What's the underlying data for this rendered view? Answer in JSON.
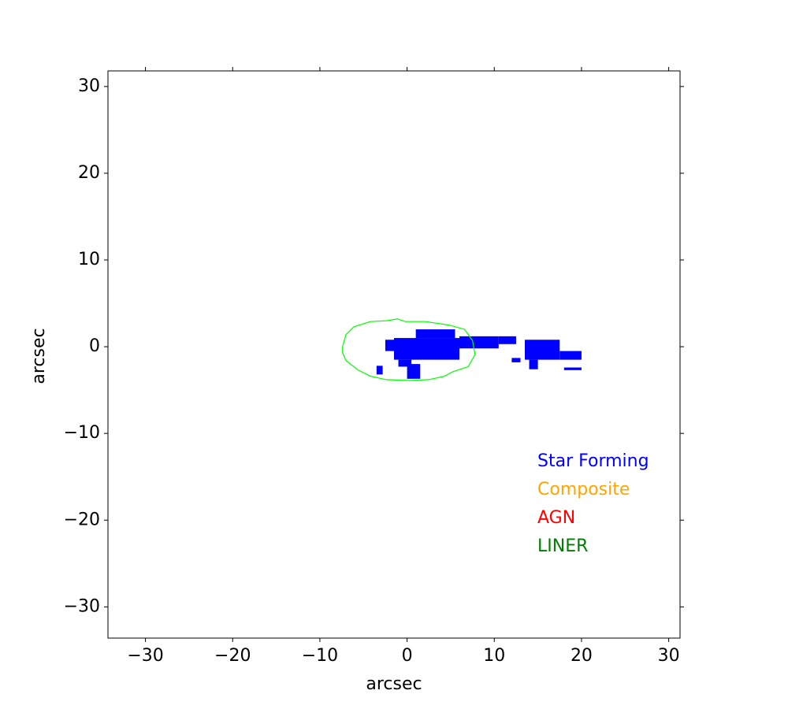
{
  "chart_data": {
    "type": "map",
    "xlabel": "arcsec",
    "ylabel": "arcsec",
    "xlim": [
      -34.3,
      31.3
    ],
    "ylim": [
      -33.6,
      31.8
    ],
    "xticks": [
      {
        "value": -30,
        "label": "−30"
      },
      {
        "value": -20,
        "label": "−20"
      },
      {
        "value": -10,
        "label": "−10"
      },
      0,
      10,
      20,
      30
    ],
    "yticks": [
      {
        "value": -30,
        "label": "−30"
      },
      {
        "value": -20,
        "label": "−20"
      },
      {
        "value": -10,
        "label": "−10"
      },
      0,
      10,
      20,
      30
    ],
    "legend": "lower right",
    "series": [
      {
        "name": "Star Forming",
        "color": "#0000ff",
        "regions": [
          [
            -1.5,
            6,
            -1.5,
            1.0
          ],
          [
            1,
            5.5,
            1.0,
            2.0
          ],
          [
            -2.5,
            -0.5,
            -0.5,
            0.8
          ],
          [
            6,
            10.5,
            -0.2,
            1.2
          ],
          [
            10.5,
            12.5,
            0.3,
            1.2
          ],
          [
            0,
            1.5,
            -3.7,
            -2.0
          ],
          [
            -3.5,
            -2.8,
            -3.2,
            -2.2
          ],
          [
            -1,
            0.5,
            -2.3,
            -1.5
          ],
          [
            13.5,
            17.5,
            -1.5,
            0.8
          ],
          [
            17.5,
            20,
            -1.5,
            -0.5
          ],
          [
            14,
            15,
            -2.6,
            -1.5
          ],
          [
            18,
            20,
            -2.7,
            -2.4
          ],
          [
            12,
            13,
            -1.8,
            -1.3
          ]
        ]
      },
      {
        "name": "Composite",
        "color": "#ffa500",
        "regions": []
      },
      {
        "name": "AGN",
        "color": "#ff0000",
        "regions": []
      },
      {
        "name": "LINER",
        "color": "#008000",
        "regions": []
      }
    ],
    "contour": {
      "color": "#00ff00",
      "x": [
        -7.4,
        -7.0,
        -6.1,
        -4.2,
        -2.4,
        -1.1,
        -0.2,
        2.1,
        4.8,
        6.6,
        7.5,
        7.8,
        7.0,
        5.2,
        4.3,
        2.5,
        0.3,
        -2.4,
        -4.2,
        -5.6,
        -7.0,
        -7.4,
        -7.4
      ],
      "y": [
        0,
        1.4,
        2.3,
        2.9,
        3.0,
        3.2,
        2.9,
        2.9,
        2.5,
        2.0,
        0.7,
        -0.9,
        -2.3,
        -2.9,
        -3.4,
        -3.8,
        -3.9,
        -3.8,
        -3.4,
        -2.7,
        -1.6,
        -0.7,
        0
      ]
    }
  }
}
